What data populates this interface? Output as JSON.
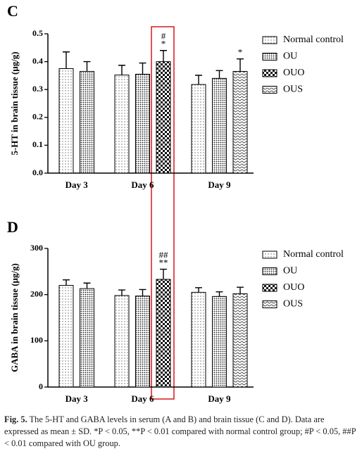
{
  "chart_data": [
    {
      "type": "bar",
      "panel": "C",
      "ylabel": "5-HT in brain tissue  (μg/g)",
      "categories": [
        "Day 3",
        "Day 6",
        "Day 9"
      ],
      "ylim": [
        0,
        0.5
      ],
      "yticks": [
        {
          "value": 0,
          "label": "0.0"
        },
        0.1,
        0.2,
        0.3,
        0.4,
        0.5
      ],
      "series": [
        {
          "name": "Normal control",
          "pattern": "lines",
          "values": [
            0.375,
            0.352,
            0.318
          ],
          "errors": [
            0.06,
            0.035,
            0.033
          ]
        },
        {
          "name": "OU",
          "pattern": "dots",
          "values": [
            0.365,
            0.355,
            0.34
          ],
          "errors": [
            0.035,
            0.04,
            0.028
          ]
        },
        {
          "name": "OUO",
          "pattern": "checker",
          "values": [
            null,
            0.4,
            null
          ],
          "errors": [
            null,
            0.04,
            null
          ],
          "annotations": [
            null,
            [
              "#",
              "*"
            ],
            null
          ]
        },
        {
          "name": "OUS",
          "pattern": "wave",
          "values": [
            null,
            null,
            0.365
          ],
          "errors": [
            null,
            null,
            0.045
          ],
          "annotations": [
            null,
            null,
            [
              "*"
            ]
          ]
        }
      ]
    },
    {
      "type": "bar",
      "panel": "D",
      "ylabel": "GABA in brain tissue (μg/g)",
      "categories": [
        "Day 3",
        "Day 6",
        "Day 9"
      ],
      "ylim": [
        0,
        300
      ],
      "yticks": [
        0,
        100,
        200,
        300
      ],
      "series": [
        {
          "name": "Normal control",
          "pattern": "lines",
          "values": [
            220,
            198,
            205
          ],
          "errors": [
            12,
            12,
            10
          ]
        },
        {
          "name": "OU",
          "pattern": "dots",
          "values": [
            213,
            197,
            196
          ],
          "errors": [
            12,
            14,
            10
          ]
        },
        {
          "name": "OUO",
          "pattern": "checker",
          "values": [
            null,
            233,
            null
          ],
          "errors": [
            null,
            22,
            null
          ],
          "annotations": [
            null,
            [
              "##",
              "**"
            ],
            null
          ]
        },
        {
          "name": "OUS",
          "pattern": "wave",
          "values": [
            null,
            null,
            202
          ],
          "errors": [
            null,
            null,
            14
          ]
        }
      ]
    }
  ],
  "caption": {
    "label": "Fig. 5.",
    "text": "The 5-HT and GABA levels in serum (A and B) and brain tissue (C and D). Data are expressed as mean ± SD. *P < 0.05, **P < 0.01 compared with normal control group; #P < 0.05, ##P < 0.01 compared with OU group."
  }
}
